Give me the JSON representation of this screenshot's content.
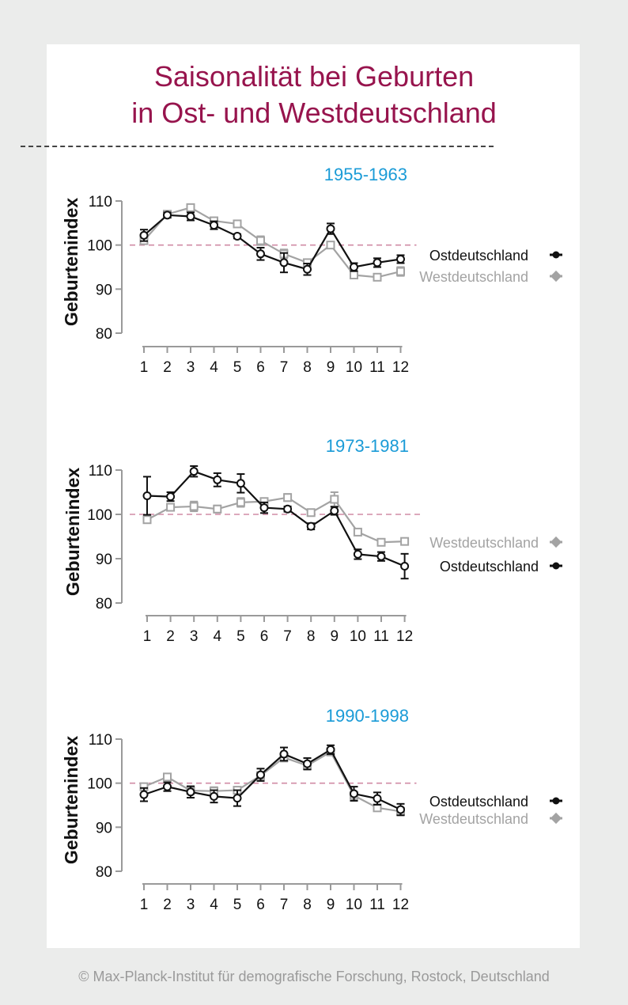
{
  "page": {
    "title_line1": "Saisonalität bei Geburten",
    "title_line2": "in Ost- und Westdeutschland",
    "footer": "© Max-Planck-Institut für demografische Forschung, Rostock, Deutschland"
  },
  "colors": {
    "title": "#97144d",
    "period_label": "#1a9bd7",
    "ost": "#111111",
    "west": "#a3a3a3",
    "reference_line": "#d08ba5"
  },
  "chart_data": [
    {
      "type": "line",
      "subtitle": "1955-1963",
      "ylabel": "Geburtenindex",
      "ylim": [
        80,
        110
      ],
      "yticks": [
        80,
        90,
        100,
        110
      ],
      "x": [
        1,
        2,
        3,
        4,
        5,
        6,
        7,
        8,
        9,
        10,
        11,
        12
      ],
      "reference_value": 100,
      "series": [
        {
          "name": "Ostdeutschland",
          "key": "ost",
          "marker": "circle",
          "values": [
            102.2,
            106.8,
            106.5,
            104.5,
            102.0,
            98.0,
            96.0,
            94.5,
            103.7,
            95.0,
            96.0,
            96.8
          ],
          "errors": [
            1.3,
            0.6,
            0.9,
            0.9,
            0.5,
            1.4,
            2.2,
            1.3,
            1.2,
            0.9,
            1.0,
            0.9
          ]
        },
        {
          "name": "Westdeutschland",
          "key": "west",
          "marker": "square",
          "values": [
            101.0,
            107.0,
            108.5,
            105.5,
            104.8,
            101.0,
            98.0,
            96.0,
            100.0,
            93.2,
            92.7,
            94.0
          ],
          "errors": [
            0.6,
            0.4,
            0.6,
            0.5,
            0.5,
            1.0,
            1.0,
            0.7,
            0.6,
            0.5,
            0.5,
            1.0
          ]
        }
      ],
      "legend_order": [
        "ost",
        "west"
      ]
    },
    {
      "type": "line",
      "subtitle": "1973-1981",
      "ylabel": "Geburtenindex",
      "ylim": [
        80,
        110
      ],
      "yticks": [
        80,
        90,
        100,
        110
      ],
      "x": [
        1,
        2,
        3,
        4,
        5,
        6,
        7,
        8,
        9,
        10,
        11,
        12
      ],
      "reference_value": 100,
      "series": [
        {
          "name": "Ostdeutschland",
          "key": "ost",
          "marker": "circle",
          "values": [
            104.2,
            104.0,
            109.7,
            107.8,
            107.0,
            101.5,
            101.2,
            97.3,
            100.8,
            91.0,
            90.5,
            88.3
          ],
          "errors": [
            4.3,
            1.0,
            1.2,
            1.5,
            2.1,
            1.2,
            0.6,
            0.7,
            0.9,
            1.1,
            1.0,
            2.8
          ]
        },
        {
          "name": "Westdeutschland",
          "key": "west",
          "marker": "square",
          "values": [
            98.8,
            101.6,
            101.8,
            101.2,
            102.7,
            102.9,
            103.8,
            100.4,
            103.4,
            96.0,
            93.7,
            93.9
          ],
          "errors": [
            0.7,
            0.6,
            1.1,
            0.8,
            1.0,
            0.6,
            0.8,
            0.6,
            1.6,
            0.6,
            0.5,
            0.6
          ]
        }
      ],
      "legend_order": [
        "west",
        "ost"
      ]
    },
    {
      "type": "line",
      "subtitle": "1990-1998",
      "ylabel": "Geburtenindex",
      "ylim": [
        80,
        110
      ],
      "yticks": [
        80,
        90,
        100,
        110
      ],
      "x": [
        1,
        2,
        3,
        4,
        5,
        6,
        7,
        8,
        9,
        10,
        11,
        12
      ],
      "reference_value": 100,
      "series": [
        {
          "name": "Ostdeutschland",
          "key": "ost",
          "marker": "circle",
          "values": [
            97.4,
            99.2,
            98.0,
            97.0,
            96.6,
            101.9,
            106.6,
            104.4,
            107.6,
            97.6,
            96.5,
            94.0
          ],
          "errors": [
            1.5,
            1.0,
            1.3,
            1.4,
            1.8,
            1.4,
            1.5,
            1.3,
            1.0,
            1.6,
            1.4,
            1.3
          ]
        },
        {
          "name": "Westdeutschland",
          "key": "west",
          "marker": "square",
          "values": [
            99.2,
            101.4,
            98.3,
            98.2,
            98.4,
            101.7,
            105.8,
            104.0,
            107.1,
            97.2,
            94.4,
            93.6
          ],
          "errors": [
            0.6,
            0.6,
            0.6,
            0.9,
            0.7,
            0.8,
            0.9,
            0.7,
            0.7,
            0.8,
            0.6,
            0.7
          ]
        }
      ],
      "legend_order": [
        "ost",
        "west"
      ]
    }
  ]
}
